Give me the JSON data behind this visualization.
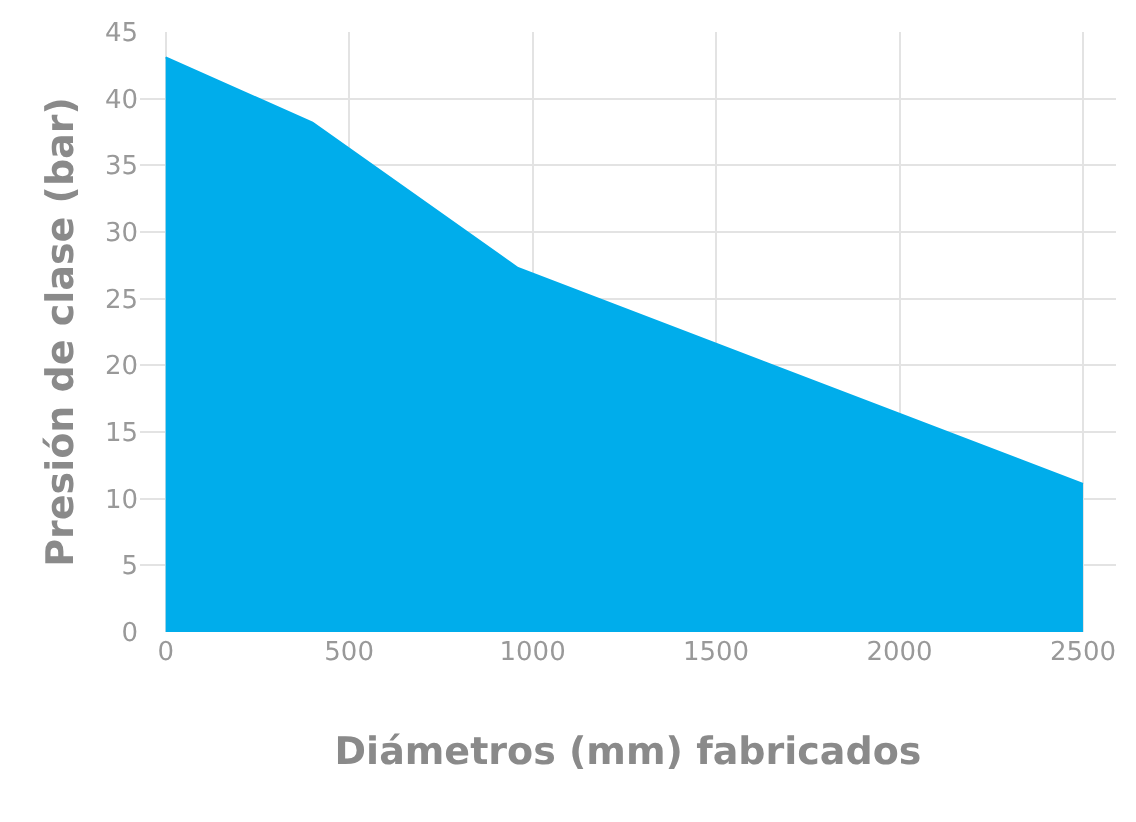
{
  "chart_data": {
    "type": "area",
    "xlabel": "Diámetros (mm) fabricados",
    "ylabel": "Presión de clase (bar)",
    "x": [
      0,
      400,
      960,
      2500
    ],
    "series": [
      {
        "color": "#00adeb",
        "values": [
          43.1,
          38.2,
          27.3,
          11.1
        ]
      }
    ],
    "xlim": [
      -70,
      2590
    ],
    "xticks": [
      0,
      500,
      1000,
      1500,
      2000,
      2500
    ],
    "ylim": [
      0,
      45
    ],
    "yticks": [
      0,
      5,
      10,
      15,
      20,
      25,
      30,
      35,
      40,
      45
    ],
    "grid": true
  }
}
